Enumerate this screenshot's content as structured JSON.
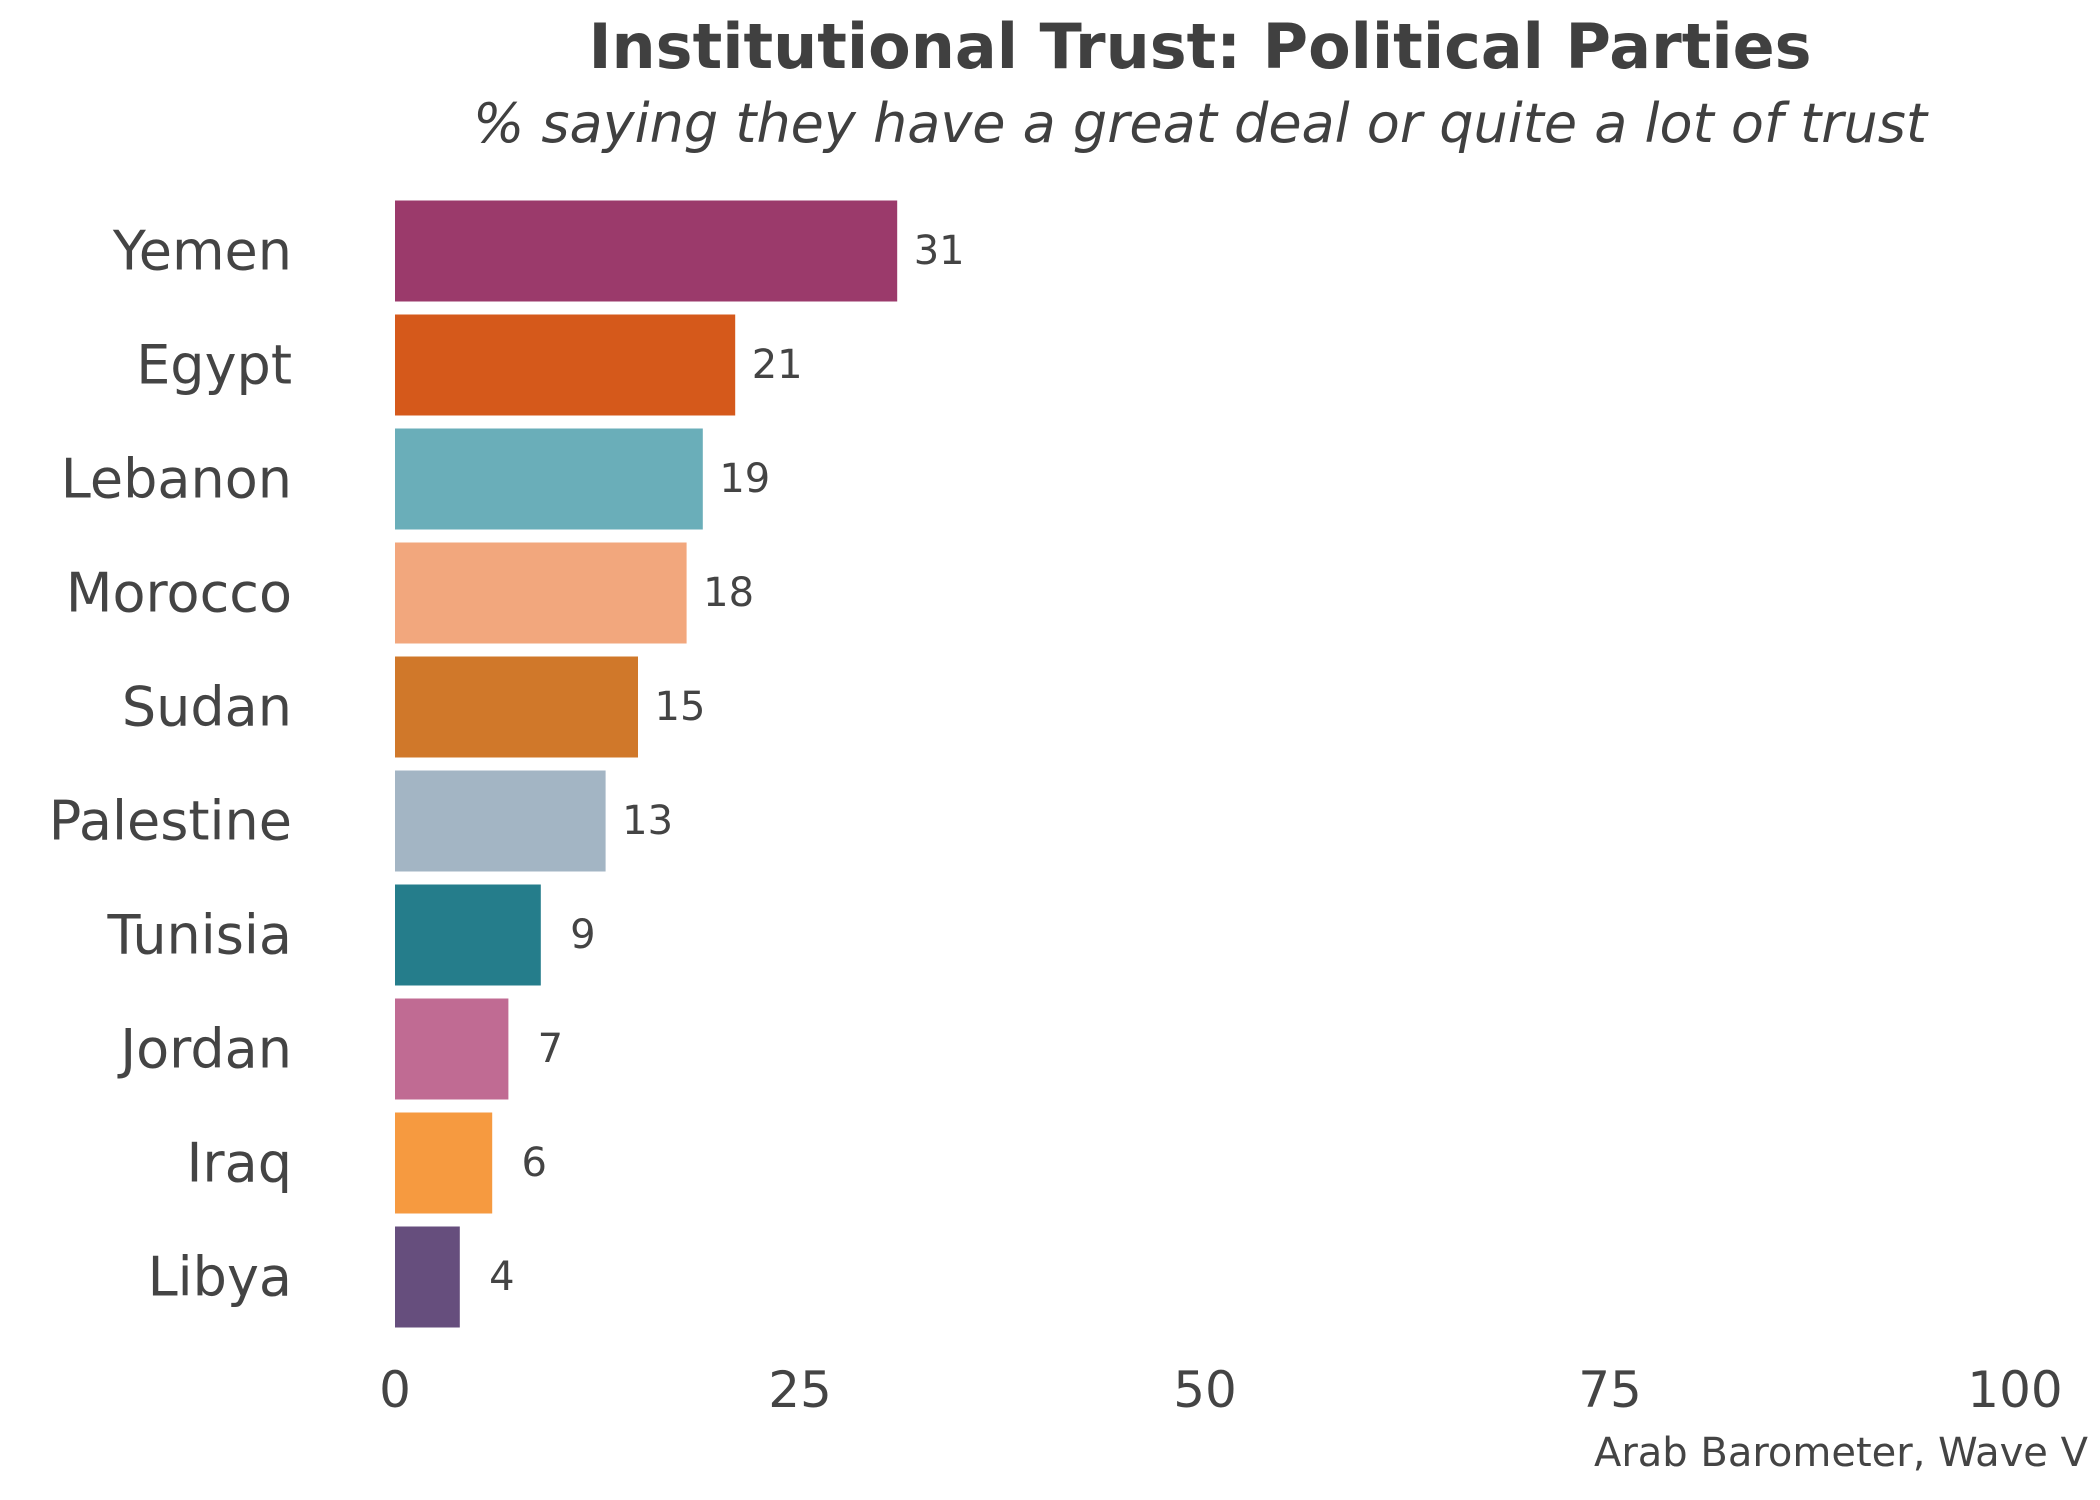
{
  "chart_data": {
    "type": "bar",
    "orientation": "horizontal",
    "title": "Institutional Trust: Political Parties",
    "subtitle": "% saying they have a great deal or quite a lot of trust",
    "caption": "Arab Barometer, Wave V",
    "xlabel": "",
    "ylabel": "",
    "xlim": [
      0,
      100
    ],
    "xticks": [
      0,
      25,
      50,
      75,
      100
    ],
    "grid": false,
    "legend": "none",
    "categories": [
      "Yemen",
      "Egypt",
      "Lebanon",
      "Morocco",
      "Sudan",
      "Palestine",
      "Tunisia",
      "Jordan",
      "Iraq",
      "Libya"
    ],
    "values": [
      31,
      21,
      19,
      18,
      15,
      13,
      9,
      7,
      6,
      4
    ],
    "colors": [
      "#9b3a6b",
      "#d5591b",
      "#6aaeb9",
      "#f2a77d",
      "#d0782a",
      "#a3b5c4",
      "#257d8b",
      "#c06b93",
      "#f69a40",
      "#664e7d"
    ]
  }
}
